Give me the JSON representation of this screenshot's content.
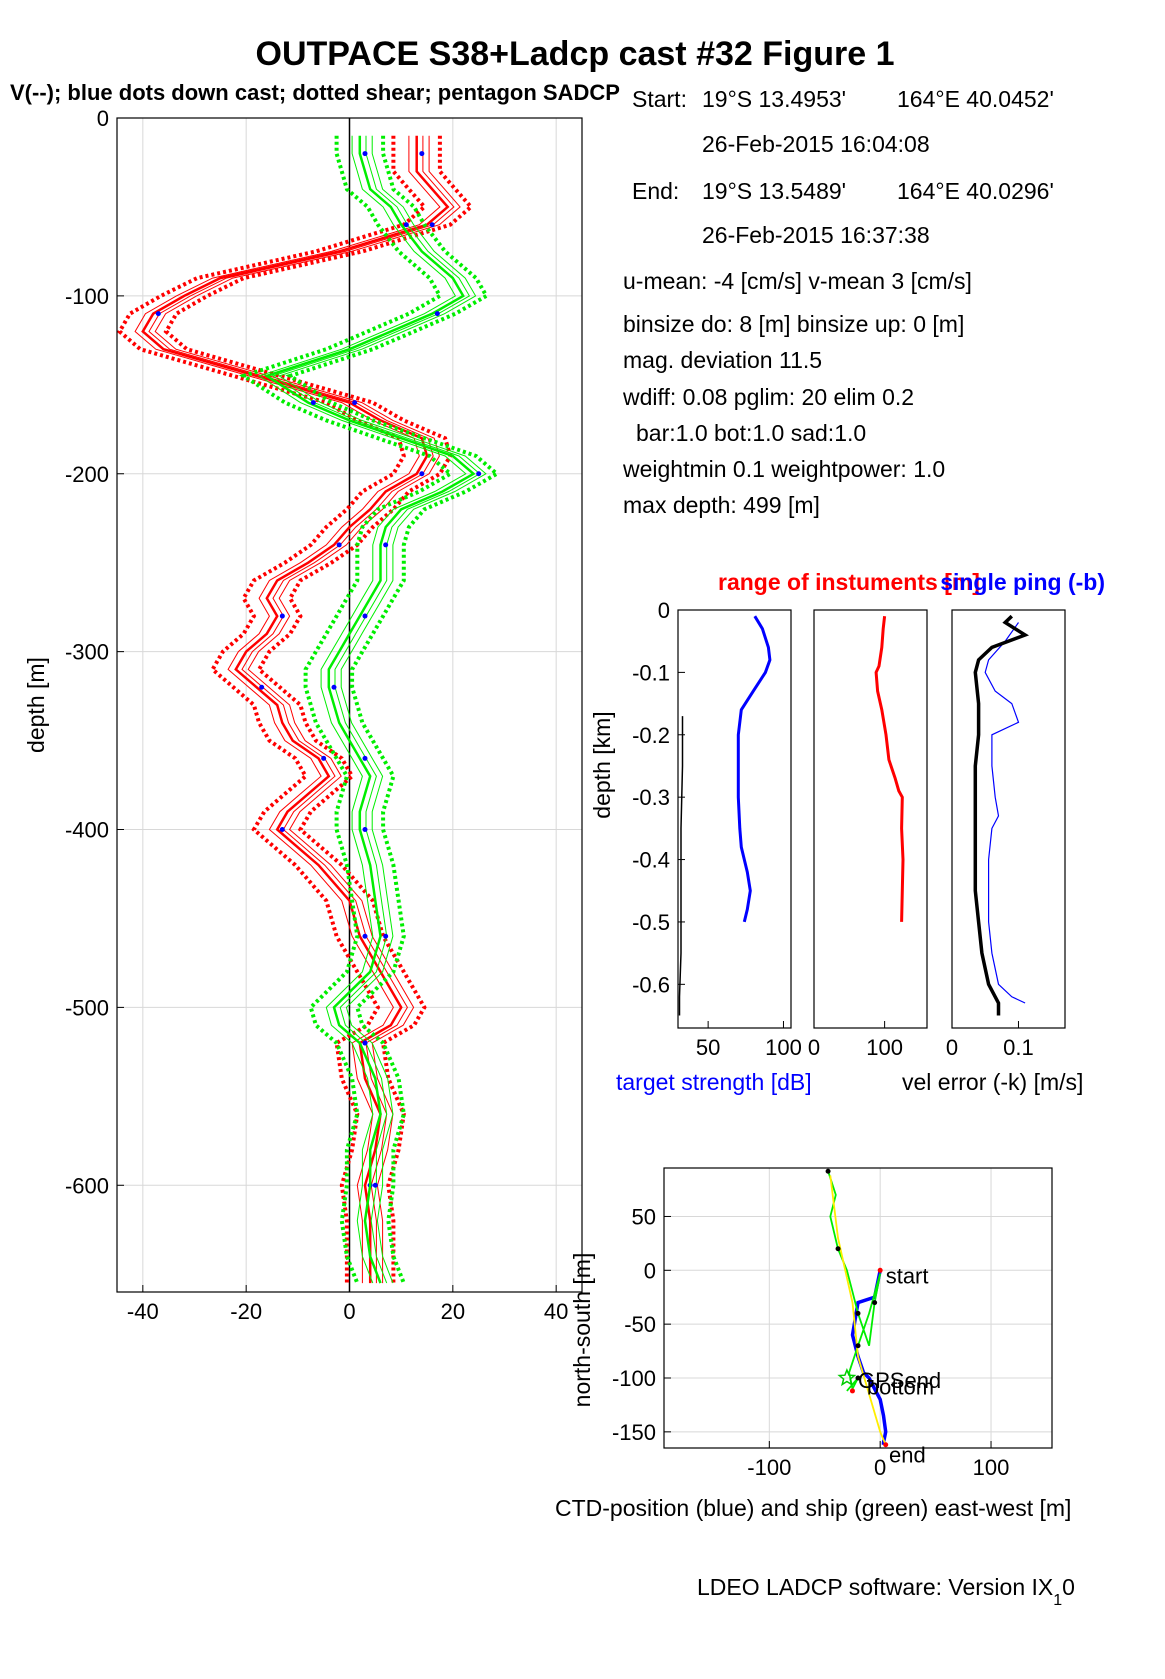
{
  "figure": {
    "title": "OUTPACE S38+Ladcp cast #32  Figure 1",
    "subtitle": "V(--); blue dots down cast; dotted shear; pentagon SADCP",
    "footer": "LDEO LADCP software: Version IX",
    "footer_sub": "1",
    "footer_tail": "0"
  },
  "info": {
    "start_label": "Start:",
    "start_lat": "19°S 13.4953'",
    "start_lon": "164°E 40.0452'",
    "start_time": "26-Feb-2015 16:04:08",
    "end_label": "End:",
    "end_lat": "19°S 13.5489'",
    "end_lon": "164°E 40.0296'",
    "end_time": "26-Feb-2015 16:37:38",
    "umean": "u-mean:  -4 [cm/s]     v-mean   3 [cm/s]",
    "binsize": "binsize do: 8 [m]  binsize up:  0 [m]",
    "magdev": "mag. deviation 11.5",
    "wdiff": "wdiff: 0.08  pglim: 20  elim 0.2",
    "bar": "bar:1.0 bot:1.0 sad:1.0",
    "weight": "weightmin 0.1  weightpower: 1.0",
    "maxdepth": "max depth: 499 [m]"
  },
  "colors": {
    "u_profile": "#ff0000",
    "v_profile": "#00ee00",
    "downcast_dots": "#0000ff",
    "target_strength": "#0000ff",
    "range": "#ff0000",
    "vel_error": "#000000",
    "single_ping": "#0000ff",
    "ctd_track": "#1f77b4",
    "ship_track": "#00cc00",
    "gps_link": "#ffee00"
  },
  "chart_data": [
    {
      "type": "line",
      "ylabel": "depth [m]",
      "xlim": [
        -45,
        45
      ],
      "ylim": [
        -660,
        0
      ],
      "xticks": [
        -40,
        -20,
        0,
        20,
        40
      ],
      "yticks": [
        0,
        -100,
        -200,
        -300,
        -400,
        -500,
        -600
      ],
      "grid": true,
      "series": [
        {
          "color": "red",
          "depth": [
            -10,
            -20,
            -30,
            -40,
            -50,
            -60,
            -75,
            -90,
            -100,
            -110,
            -120,
            -130,
            -145,
            -160,
            -170,
            -180,
            -190,
            -200,
            -210,
            -220,
            -230,
            -240,
            -250,
            -260,
            -270,
            -280,
            -290,
            -300,
            -310,
            -320,
            -330,
            -340,
            -350,
            -360,
            -370,
            -380,
            -390,
            -400,
            -410,
            -420,
            -440,
            -460,
            -480,
            -500,
            -510,
            -520,
            -540,
            -560,
            -580,
            -600,
            -620,
            -640,
            -655
          ],
          "values": [
            13,
            13,
            13,
            16,
            19,
            15,
            -2,
            -25,
            -32,
            -38,
            -40,
            -36,
            -18,
            0,
            6,
            14,
            15,
            13,
            7,
            4,
            0,
            -3,
            -8,
            -14,
            -16,
            -14,
            -16,
            -20,
            -22,
            -18,
            -14,
            -13,
            -11,
            -6,
            -4,
            -8,
            -12,
            -14,
            -10,
            -6,
            0,
            2,
            6,
            10,
            8,
            2,
            3,
            6,
            5,
            3,
            4,
            4,
            4
          ]
        },
        {
          "color": "green",
          "depth": [
            -10,
            -20,
            -30,
            -40,
            -50,
            -60,
            -75,
            -90,
            -100,
            -110,
            -120,
            -130,
            -145,
            -160,
            -170,
            -180,
            -190,
            -200,
            -210,
            -220,
            -230,
            -240,
            -250,
            -260,
            -270,
            -280,
            -290,
            -300,
            -310,
            -320,
            -330,
            -340,
            -350,
            -360,
            -370,
            -380,
            -390,
            -400,
            -410,
            -420,
            -440,
            -460,
            -480,
            -500,
            -510,
            -520,
            -540,
            -560,
            -580,
            -600,
            -620,
            -640,
            -655
          ],
          "values": [
            2,
            2,
            3,
            4,
            8,
            10,
            14,
            20,
            22,
            16,
            8,
            0,
            -16,
            -8,
            0,
            10,
            20,
            24,
            18,
            10,
            7,
            6,
            6,
            6,
            4,
            2,
            0,
            -2,
            -4,
            -4,
            -3,
            -2,
            0,
            2,
            4,
            3,
            2,
            2,
            3,
            4,
            5,
            6,
            4,
            -3,
            -2,
            2,
            5,
            6,
            4,
            4,
            3,
            4,
            6
          ]
        }
      ]
    },
    {
      "type": "line",
      "title": "range of instuments [m]",
      "ylabel": "depth [km]",
      "xlabel": "target strength [dB]",
      "xlim": [
        30,
        105
      ],
      "ylim": [
        -0.67,
        0
      ],
      "xticks": [
        50,
        100
      ],
      "yticks": [
        0,
        -0.1,
        -0.2,
        -0.3,
        -0.4,
        -0.5,
        -0.6
      ],
      "series": [
        {
          "color": "blue",
          "depth": [
            -0.01,
            -0.03,
            -0.06,
            -0.08,
            -0.1,
            -0.13,
            -0.16,
            -0.2,
            -0.25,
            -0.3,
            -0.35,
            -0.38,
            -0.42,
            -0.45,
            -0.48,
            -0.5
          ],
          "values": [
            81,
            86,
            90,
            91,
            88,
            80,
            72,
            70,
            70,
            70,
            71,
            72,
            76,
            78,
            76,
            74
          ]
        },
        {
          "color": "black",
          "depth": [
            -0.17,
            -0.25,
            -0.35,
            -0.45,
            -0.55,
            -0.62,
            -0.65
          ],
          "values": [
            33,
            33,
            32,
            32,
            32,
            31,
            31
          ]
        }
      ]
    },
    {
      "type": "line",
      "xlim": [
        0,
        160
      ],
      "ylim": [
        -0.67,
        0
      ],
      "xticks": [
        0,
        100
      ],
      "series": [
        {
          "color": "red",
          "depth": [
            -0.01,
            -0.03,
            -0.06,
            -0.09,
            -0.1,
            -0.13,
            -0.16,
            -0.2,
            -0.24,
            -0.27,
            -0.29,
            -0.3,
            -0.35,
            -0.4,
            -0.45,
            -0.5
          ],
          "values": [
            100,
            98,
            96,
            92,
            88,
            90,
            96,
            102,
            106,
            115,
            120,
            125,
            124,
            126,
            125,
            124
          ]
        }
      ]
    },
    {
      "type": "line",
      "title": "single ping (-b)",
      "xlabel": "vel error (-k) [m/s]",
      "xlim": [
        0,
        0.17
      ],
      "ylim": [
        -0.67,
        0
      ],
      "xticks": [
        0,
        0.1
      ],
      "series": [
        {
          "color": "black",
          "depth": [
            -0.01,
            -0.02,
            -0.04,
            -0.06,
            -0.08,
            -0.1,
            -0.15,
            -0.2,
            -0.25,
            -0.3,
            -0.35,
            -0.4,
            -0.45,
            -0.5,
            -0.55,
            -0.6,
            -0.62,
            -0.63,
            -0.65
          ],
          "values": [
            0.09,
            0.08,
            0.11,
            0.06,
            0.04,
            0.035,
            0.04,
            0.04,
            0.035,
            0.035,
            0.035,
            0.035,
            0.035,
            0.04,
            0.045,
            0.055,
            0.065,
            0.07,
            0.07
          ]
        },
        {
          "color": "blue",
          "depth": [
            -0.02,
            -0.05,
            -0.08,
            -0.1,
            -0.13,
            -0.15,
            -0.18,
            -0.2,
            -0.25,
            -0.3,
            -0.33,
            -0.35,
            -0.4,
            -0.45,
            -0.5,
            -0.55,
            -0.6,
            -0.62,
            -0.63
          ],
          "values": [
            0.1,
            0.08,
            0.055,
            0.05,
            0.065,
            0.09,
            0.1,
            0.06,
            0.06,
            0.065,
            0.07,
            0.06,
            0.055,
            0.055,
            0.055,
            0.06,
            0.07,
            0.09,
            0.11
          ]
        }
      ]
    },
    {
      "type": "line",
      "xlabel": "CTD-position (blue) and ship (green) east-west [m]",
      "ylabel": "north-south [m]",
      "xlim": [
        -195,
        155
      ],
      "ylim": [
        -165,
        95
      ],
      "xticks": [
        -100,
        0,
        100
      ],
      "yticks": [
        50,
        0,
        -50,
        -100,
        -150
      ],
      "annotations": [
        "start",
        "GPSend",
        "bottom",
        "end"
      ],
      "series": [
        {
          "color": "blue",
          "x": [
            0,
            -5,
            -20,
            -25,
            -20,
            -15,
            -10,
            -5,
            0,
            3,
            5,
            3,
            3
          ],
          "y": [
            0,
            -25,
            -30,
            -60,
            -80,
            -95,
            -100,
            -110,
            -120,
            -135,
            -150,
            -160,
            -162
          ]
        },
        {
          "color": "green",
          "x": [
            -47,
            -40,
            -45,
            -38,
            -30,
            -25,
            -20,
            -15,
            -10,
            -5,
            0,
            -10,
            -20,
            -28,
            -25,
            -20,
            -30
          ],
          "y": [
            92,
            70,
            50,
            20,
            0,
            -20,
            -40,
            -55,
            -70,
            -30,
            -3,
            -40,
            -70,
            -95,
            -110,
            -100,
            -112
          ]
        },
        {
          "color": "yellow",
          "x": [
            -45,
            -38,
            -25,
            -20,
            0,
            5
          ],
          "y": [
            88,
            30,
            -30,
            -80,
            -150,
            -162
          ]
        }
      ]
    }
  ]
}
